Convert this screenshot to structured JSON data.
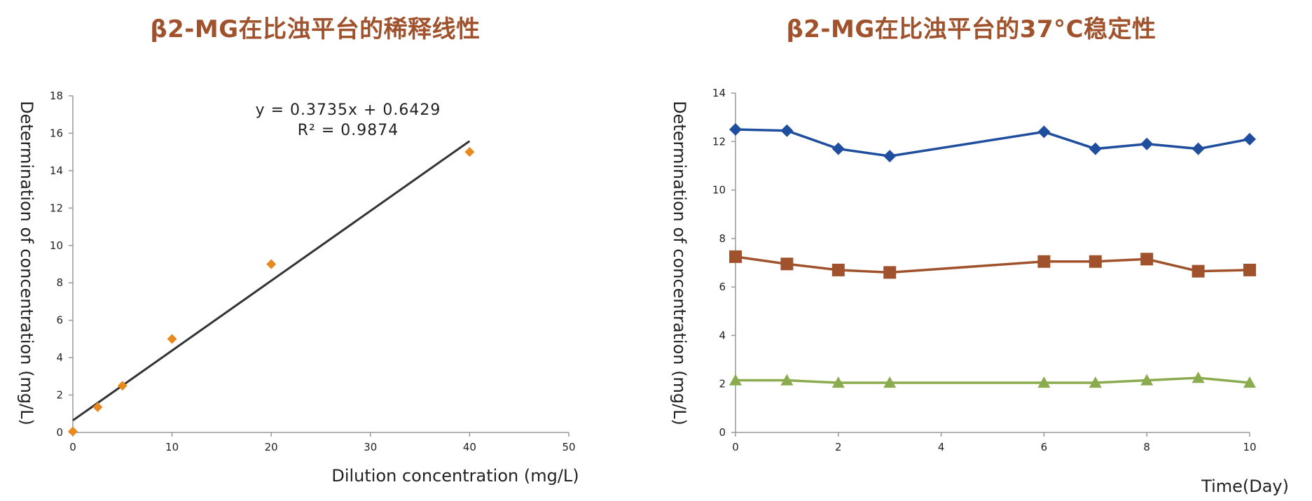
{
  "chart_data": [
    {
      "type": "scatter",
      "title": "β2-MG在比浊平台的稀释线性",
      "xlabel": "Dilution concentration (mg/L)",
      "ylabel": "Determination of concentration (mg/L)",
      "xlim": [
        0,
        50
      ],
      "ylim": [
        0,
        18
      ],
      "xticks": [
        0,
        10,
        20,
        30,
        40,
        50
      ],
      "yticks": [
        0,
        2,
        4,
        6,
        8,
        10,
        12,
        14,
        16,
        18
      ],
      "series": [
        {
          "color": "#e8891e",
          "marker": "diamond",
          "x": [
            0,
            2.5,
            5,
            10,
            20,
            40
          ],
          "y": [
            0.05,
            1.35,
            2.5,
            5.0,
            9.0,
            15.0
          ]
        }
      ],
      "trendline": {
        "slope": 0.3735,
        "intercept": 0.6429,
        "x_range": [
          0,
          40
        ],
        "color": "#333333"
      },
      "equation_lines": [
        "y = 0.3735x + 0.6429",
        "R² = 0.9874"
      ],
      "grid": false,
      "legend": "none"
    },
    {
      "type": "line",
      "title": "β2-MG在比浊平台的37°C稳定性",
      "xlabel": "Time(Day)",
      "ylabel": "Determination of concentration (mg/L)",
      "xlim": [
        0,
        10
      ],
      "ylim": [
        0,
        14
      ],
      "xticks": [
        0,
        2,
        4,
        6,
        8,
        10
      ],
      "yticks": [
        0,
        2,
        4,
        6,
        8,
        10,
        12,
        14
      ],
      "x": [
        0,
        1,
        2,
        3,
        6,
        7,
        8,
        9,
        10
      ],
      "series": [
        {
          "color": "#1f4e9e",
          "marker": "diamond",
          "values": [
            12.5,
            12.45,
            11.7,
            11.4,
            12.4,
            11.7,
            11.9,
            11.7,
            12.1
          ]
        },
        {
          "color": "#a0522d",
          "marker": "square",
          "values": [
            7.25,
            6.95,
            6.7,
            6.6,
            7.05,
            7.05,
            7.15,
            6.65,
            6.7
          ]
        },
        {
          "color": "#8aab4e",
          "marker": "triangle",
          "values": [
            2.15,
            2.15,
            2.05,
            2.05,
            2.05,
            2.05,
            2.15,
            2.25,
            2.05
          ]
        }
      ],
      "grid": false,
      "legend": "none"
    }
  ]
}
